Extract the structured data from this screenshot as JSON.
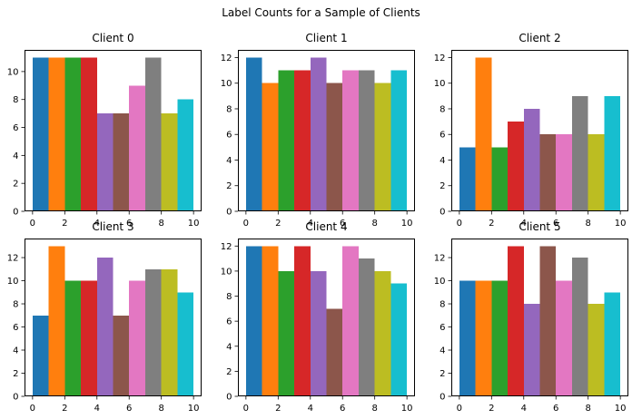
{
  "figure": {
    "title": "Label Counts for a Sample of Clients",
    "background": "#ffffff"
  },
  "bar_colors": [
    "#1f77b4",
    "#ff7f0e",
    "#2ca02c",
    "#d62728",
    "#9467bd",
    "#8c564b",
    "#e377c2",
    "#7f7f7f",
    "#bcbd22",
    "#17becf"
  ],
  "chart_data": [
    {
      "type": "bar",
      "title": "Client 0",
      "categories": [
        0,
        1,
        2,
        3,
        4,
        5,
        6,
        7,
        8,
        9
      ],
      "values": [
        11,
        11,
        11,
        11,
        7,
        7,
        9,
        11,
        7,
        8
      ],
      "xlabel": "",
      "ylabel": "",
      "xlim": [
        -0.5,
        10.5
      ],
      "ylim": [
        0,
        11.55
      ],
      "xticks": [
        0,
        2,
        4,
        6,
        8,
        10
      ],
      "yticks": [
        0,
        2,
        4,
        6,
        8,
        10
      ],
      "grid": false
    },
    {
      "type": "bar",
      "title": "Client 1",
      "categories": [
        0,
        1,
        2,
        3,
        4,
        5,
        6,
        7,
        8,
        9
      ],
      "values": [
        12,
        10,
        11,
        11,
        12,
        10,
        11,
        11,
        10,
        11
      ],
      "xlabel": "",
      "ylabel": "",
      "xlim": [
        -0.5,
        10.5
      ],
      "ylim": [
        0,
        12.6
      ],
      "xticks": [
        0,
        2,
        4,
        6,
        8,
        10
      ],
      "yticks": [
        0,
        2,
        4,
        6,
        8,
        10,
        12
      ],
      "grid": false
    },
    {
      "type": "bar",
      "title": "Client 2",
      "categories": [
        0,
        1,
        2,
        3,
        4,
        5,
        6,
        7,
        8,
        9
      ],
      "values": [
        5,
        12,
        5,
        7,
        8,
        6,
        6,
        9,
        6,
        9
      ],
      "xlabel": "",
      "ylabel": "",
      "xlim": [
        -0.5,
        10.5
      ],
      "ylim": [
        0,
        12.6
      ],
      "xticks": [
        0,
        2,
        4,
        6,
        8,
        10
      ],
      "yticks": [
        0,
        2,
        4,
        6,
        8,
        10,
        12
      ],
      "grid": false
    },
    {
      "type": "bar",
      "title": "Client 3",
      "categories": [
        0,
        1,
        2,
        3,
        4,
        5,
        6,
        7,
        8,
        9
      ],
      "values": [
        7,
        13,
        10,
        10,
        12,
        7,
        10,
        11,
        11,
        9
      ],
      "xlabel": "",
      "ylabel": "",
      "xlim": [
        -0.5,
        10.5
      ],
      "ylim": [
        0,
        13.65
      ],
      "xticks": [
        0,
        2,
        4,
        6,
        8,
        10
      ],
      "yticks": [
        0,
        2,
        4,
        6,
        8,
        10,
        12
      ],
      "grid": false
    },
    {
      "type": "bar",
      "title": "Client 4",
      "categories": [
        0,
        1,
        2,
        3,
        4,
        5,
        6,
        7,
        8,
        9
      ],
      "values": [
        12,
        12,
        10,
        12,
        10,
        7,
        12,
        11,
        10,
        9
      ],
      "xlabel": "",
      "ylabel": "",
      "xlim": [
        -0.5,
        10.5
      ],
      "ylim": [
        0,
        12.6
      ],
      "xticks": [
        0,
        2,
        4,
        6,
        8,
        10
      ],
      "yticks": [
        0,
        2,
        4,
        6,
        8,
        10,
        12
      ],
      "grid": false
    },
    {
      "type": "bar",
      "title": "Client 5",
      "categories": [
        0,
        1,
        2,
        3,
        4,
        5,
        6,
        7,
        8,
        9
      ],
      "values": [
        10,
        10,
        10,
        13,
        8,
        13,
        10,
        12,
        8,
        9
      ],
      "xlabel": "",
      "ylabel": "",
      "xlim": [
        -0.5,
        10.5
      ],
      "ylim": [
        0,
        13.65
      ],
      "xticks": [
        0,
        2,
        4,
        6,
        8,
        10
      ],
      "yticks": [
        0,
        2,
        4,
        6,
        8,
        10,
        12
      ],
      "grid": false
    }
  ]
}
